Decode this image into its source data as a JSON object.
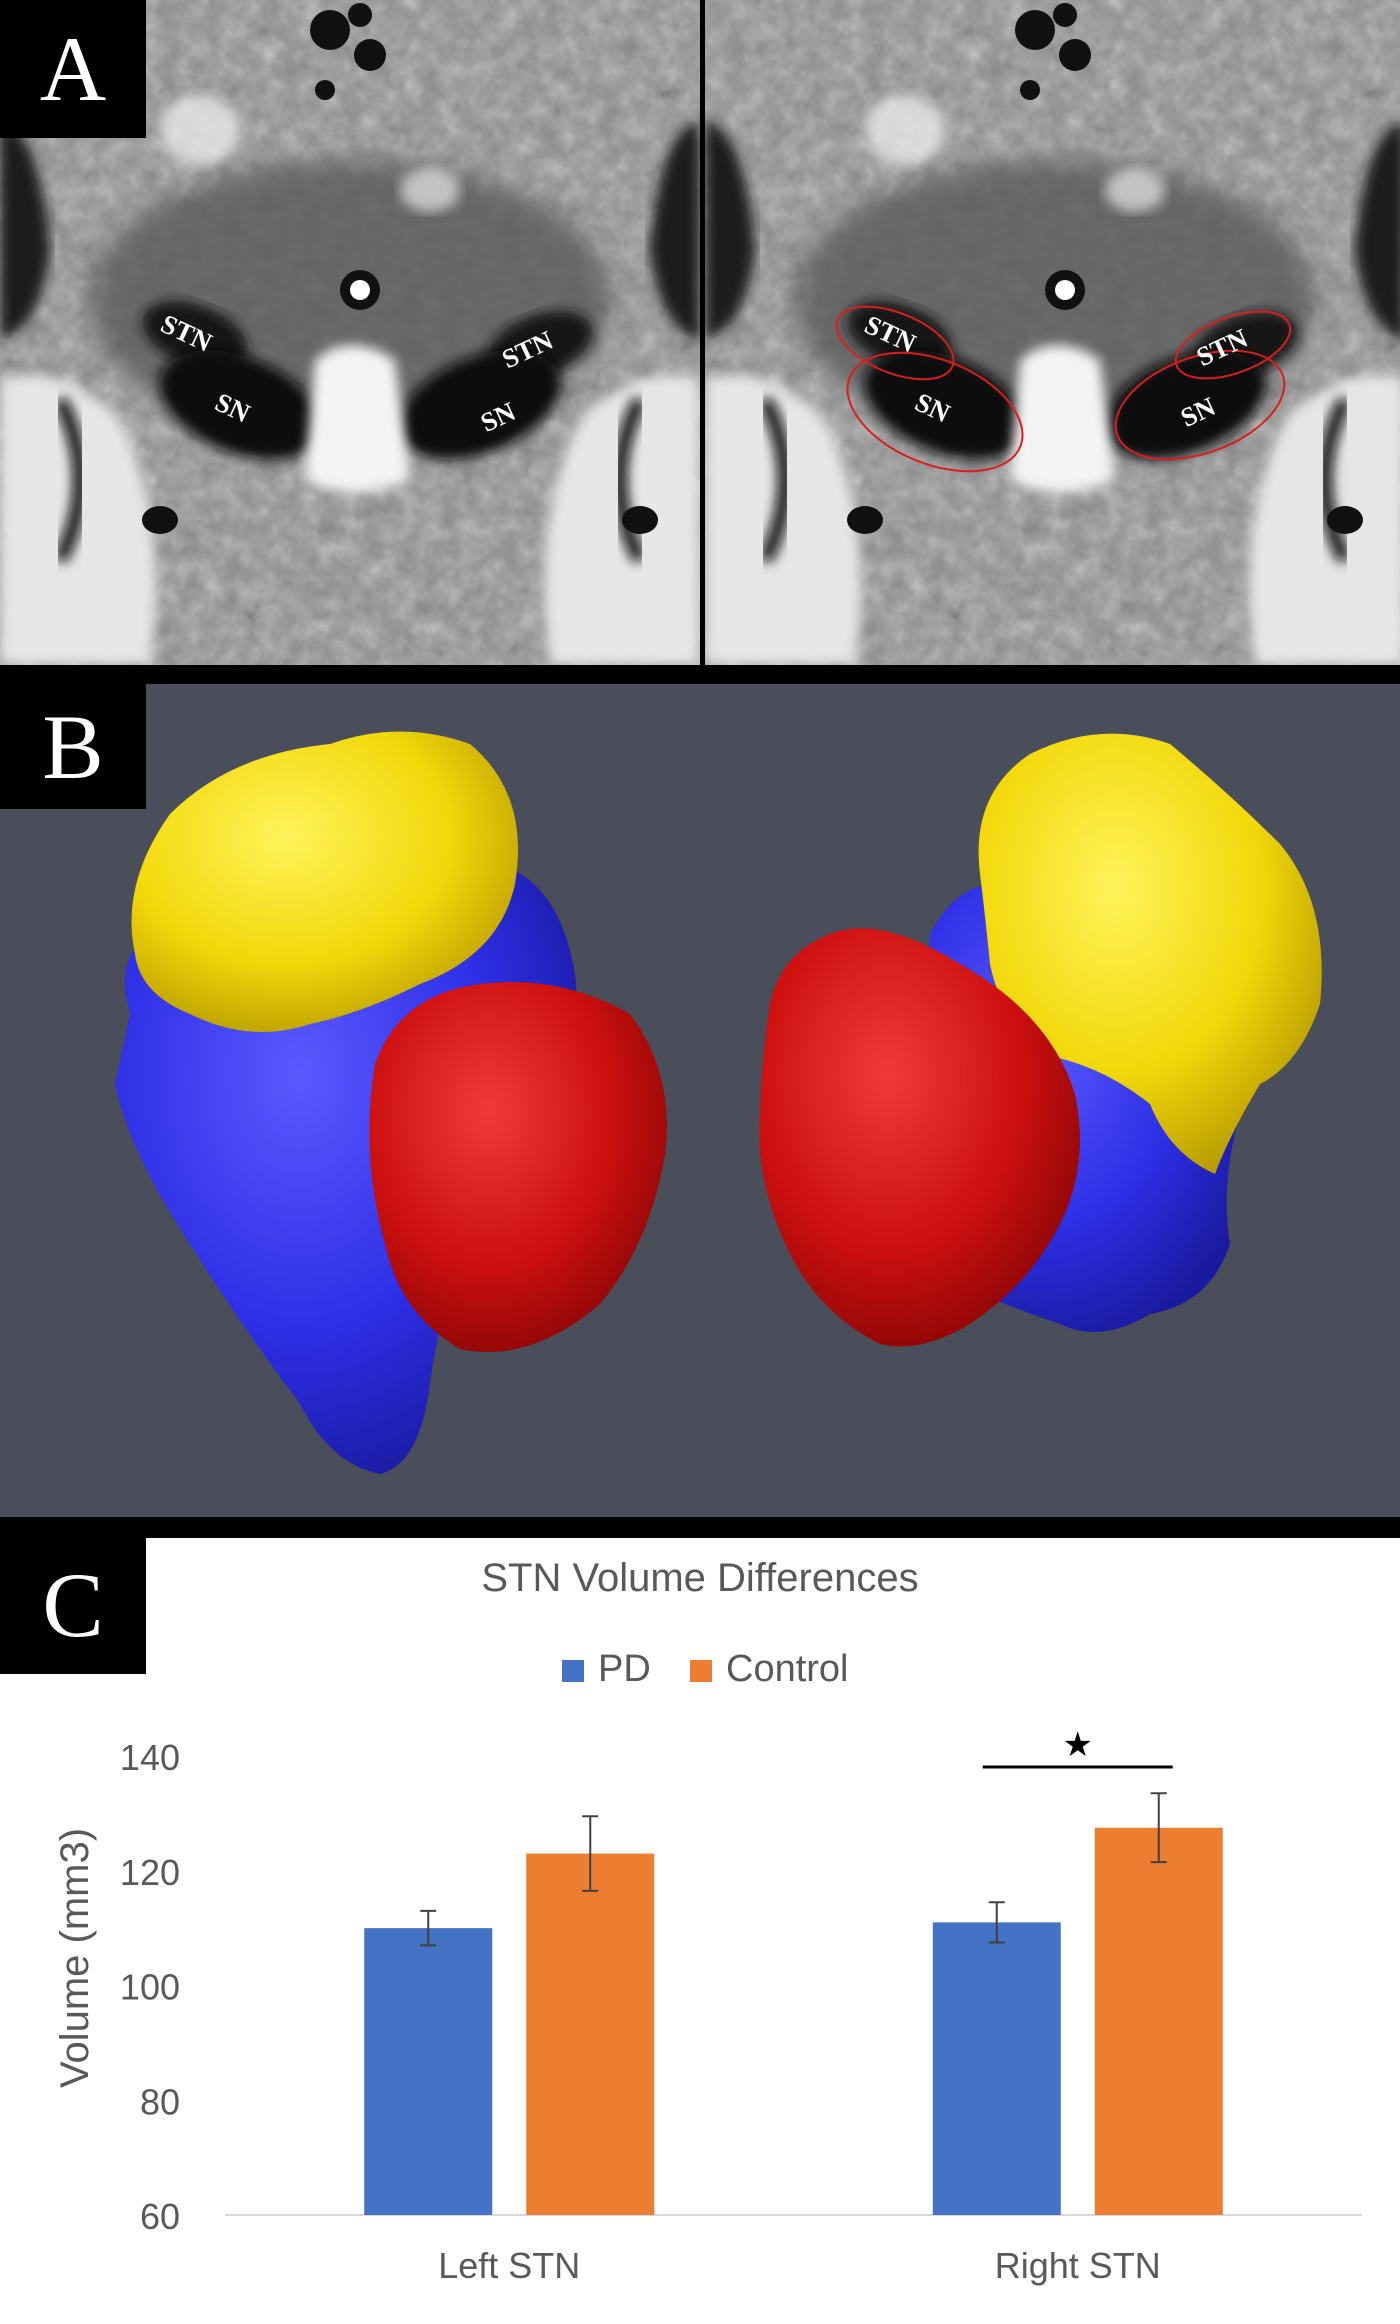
{
  "panels": {
    "a": {
      "tag": "A",
      "labels": {
        "stn": "STN",
        "sn": "SN"
      }
    },
    "b": {
      "tag": "B"
    },
    "c": {
      "tag": "C"
    }
  },
  "colors": {
    "pd": "#4472c4",
    "control": "#ed7d31",
    "stn_render": "#ce0e0e",
    "sn_render": "#2f2fe0",
    "rn_render": "#f0d80a",
    "panel_b_bg": "#4a4e5a"
  },
  "chart_data": {
    "type": "bar",
    "title": "STN Volume Differences",
    "categories": [
      "Left STN",
      "Right STN"
    ],
    "series": [
      {
        "name": "PD",
        "values": [
          110,
          111
        ],
        "errors": [
          3,
          3.5
        ]
      },
      {
        "name": "Control",
        "values": [
          123,
          127.5
        ],
        "errors": [
          6.5,
          6
        ]
      }
    ],
    "xlabel": "",
    "ylabel": "Volume (mm3)",
    "ylim": [
      60,
      140
    ],
    "yticks": [
      60,
      80,
      100,
      120,
      140
    ],
    "legend": "top-center",
    "grid": false,
    "significance": {
      "category": "Right STN",
      "symbol": "★"
    }
  }
}
